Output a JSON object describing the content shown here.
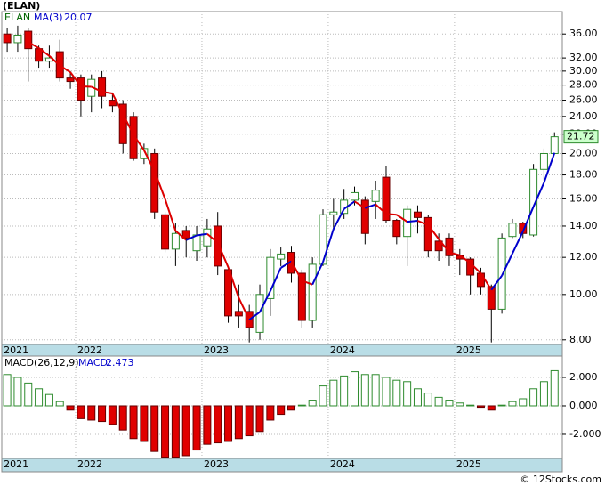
{
  "title": "(ELAN)",
  "copyright": "© 12Stocks.com",
  "chart_data": [
    {
      "type": "candlestick",
      "symbol": "ELAN",
      "categories": [
        "2021",
        null,
        null,
        null,
        null,
        null,
        null,
        "2022",
        null,
        null,
        null,
        null,
        null,
        null,
        null,
        null,
        null,
        null,
        null,
        "2023",
        null,
        null,
        null,
        null,
        null,
        null,
        null,
        null,
        null,
        null,
        null,
        "2024",
        null,
        null,
        null,
        null,
        null,
        null,
        null,
        null,
        null,
        null,
        null,
        "2025",
        null,
        null,
        null,
        null,
        null,
        null,
        null,
        null,
        null
      ],
      "open": [
        36,
        34.5,
        36.5,
        33.5,
        31.5,
        33,
        29,
        29,
        26.5,
        29,
        26,
        25.5,
        24,
        19.5,
        20,
        14.8,
        12.5,
        13.7,
        12.4,
        12.7,
        14,
        11.3,
        9.2,
        9.2,
        8.3,
        9.8,
        11.9,
        12.3,
        11.1,
        8.8,
        11.6,
        14.8,
        14.9,
        15.9,
        15.9,
        15.8,
        17.8,
        14.4,
        13.3,
        15,
        14.6,
        13,
        13.2,
        12.1,
        11.9,
        11.1,
        10.4,
        9.3,
        13.3,
        14.2,
        13.4,
        18.5,
        20.0
      ],
      "high": [
        37,
        37.5,
        37,
        34,
        34,
        35,
        30,
        29.5,
        29.5,
        30,
        27,
        26,
        24.5,
        21,
        20.5,
        15,
        14.2,
        14,
        14,
        14.5,
        15,
        11.5,
        10.5,
        9.5,
        10.5,
        12.5,
        12.6,
        12.7,
        11.3,
        12,
        15.2,
        16,
        16.8,
        17,
        16.2,
        17.5,
        18.8,
        14.5,
        15.5,
        15.5,
        14.8,
        13.5,
        13.5,
        12.5,
        12,
        11.4,
        10.5,
        13.5,
        14.5,
        14.3,
        19,
        20.5,
        22.2
      ],
      "low": [
        33,
        33,
        28.5,
        30.5,
        30.5,
        28.5,
        27.5,
        24,
        24.5,
        25,
        24.5,
        20,
        19.3,
        19,
        14.5,
        12.3,
        11.5,
        12,
        11.8,
        12,
        11,
        8.7,
        8.5,
        7.9,
        8,
        9,
        11.5,
        10.6,
        8.5,
        8.5,
        11.5,
        13.8,
        14.5,
        15.5,
        12.8,
        14.5,
        14.2,
        12.8,
        11.5,
        13.5,
        12,
        11.8,
        11.5,
        11,
        10,
        10,
        7.9,
        9.1,
        13.2,
        13.2,
        13.3,
        17.5,
        20
      ],
      "close": [
        34.5,
        35.8,
        33.5,
        31.5,
        32,
        29,
        28.5,
        26,
        28.8,
        26.5,
        25.3,
        21,
        19.5,
        20.5,
        15,
        12.5,
        13.5,
        13.2,
        13.4,
        13.8,
        11.5,
        9,
        9,
        8.5,
        10,
        12,
        12.2,
        11.1,
        8.8,
        11.6,
        14.8,
        15,
        15.9,
        16.5,
        13.5,
        16.7,
        14.4,
        13.3,
        15.2,
        14.6,
        12.4,
        12.4,
        12.1,
        11.9,
        11,
        10.4,
        9.3,
        13.2,
        14.2,
        13.5,
        18.5,
        20.0,
        21.72
      ],
      "up_color": "#2e8b2e",
      "down_color": "#e00000",
      "ma": {
        "name": "MA(3)",
        "up_color": "#0000cc",
        "down_color": "#dd0000",
        "values": [
          null,
          null,
          34.6,
          33.6,
          32.33,
          30.83,
          29.83,
          27.83,
          27.77,
          27.1,
          26.87,
          24.27,
          21.93,
          20.33,
          18.33,
          16,
          13.67,
          13.07,
          13.37,
          13.47,
          12.9,
          11.43,
          9.83,
          8.83,
          9.17,
          10.17,
          11.4,
          11.77,
          10.7,
          10.5,
          11.73,
          13.8,
          15.23,
          15.8,
          15.3,
          15.57,
          14.87,
          14.8,
          14.3,
          14.37,
          14.07,
          13.13,
          12.3,
          12.13,
          11.67,
          11.1,
          10.23,
          10.97,
          12.23,
          13.63,
          15.4,
          17.33,
          20.07
        ]
      },
      "log_scale": true,
      "grid": true,
      "ylim": [
        7.82,
        40.2
      ],
      "yticks": [
        {
          "value": 8,
          "label": "8.00"
        },
        {
          "value": 10,
          "label": "10.00"
        },
        {
          "value": 12,
          "label": "12.00"
        },
        {
          "value": 14,
          "label": "14.00"
        },
        {
          "value": 16,
          "label": "16.00"
        },
        {
          "value": 18,
          "label": "18.00"
        },
        {
          "value": 20,
          "label": "20.00"
        },
        {
          "value": 22,
          "label": "22.00"
        },
        {
          "value": 24,
          "label": "24.00"
        },
        {
          "value": 26,
          "label": "26.00"
        },
        {
          "value": 28,
          "label": "28.00"
        },
        {
          "value": 30,
          "label": "30.00"
        },
        {
          "value": 32,
          "label": "32.00"
        },
        {
          "value": 36,
          "label": "36.00"
        }
      ]
    },
    {
      "type": "bar",
      "name": "MACD(26,12,9)",
      "value_name": "MACD:",
      "up_color": "#2e8b2e",
      "down_color": "#e00000",
      "grid": true,
      "values": [
        2.2,
        2.0,
        1.6,
        1.2,
        0.8,
        0.3,
        -0.3,
        -0.9,
        -1.0,
        -1.1,
        -1.3,
        -1.7,
        -2.3,
        -2.5,
        -3.2,
        -3.6,
        -3.6,
        -3.5,
        -3.1,
        -2.7,
        -2.6,
        -2.5,
        -2.3,
        -2.1,
        -1.8,
        -1.0,
        -0.6,
        -0.3,
        0.05,
        0.4,
        1.4,
        1.8,
        2.1,
        2.4,
        2.2,
        2.2,
        2.0,
        1.8,
        1.7,
        1.2,
        0.9,
        0.6,
        0.4,
        0.2,
        0.05,
        -0.1,
        -0.3,
        0.05,
        0.3,
        0.5,
        1.2,
        1.7,
        2.473
      ],
      "ylim": [
        -3.69,
        3.5
      ],
      "yticks": [
        {
          "value": 2,
          "label": "2.000"
        },
        {
          "value": 0,
          "label": "0.000"
        },
        {
          "value": -2,
          "label": "-2.000"
        }
      ]
    }
  ]
}
